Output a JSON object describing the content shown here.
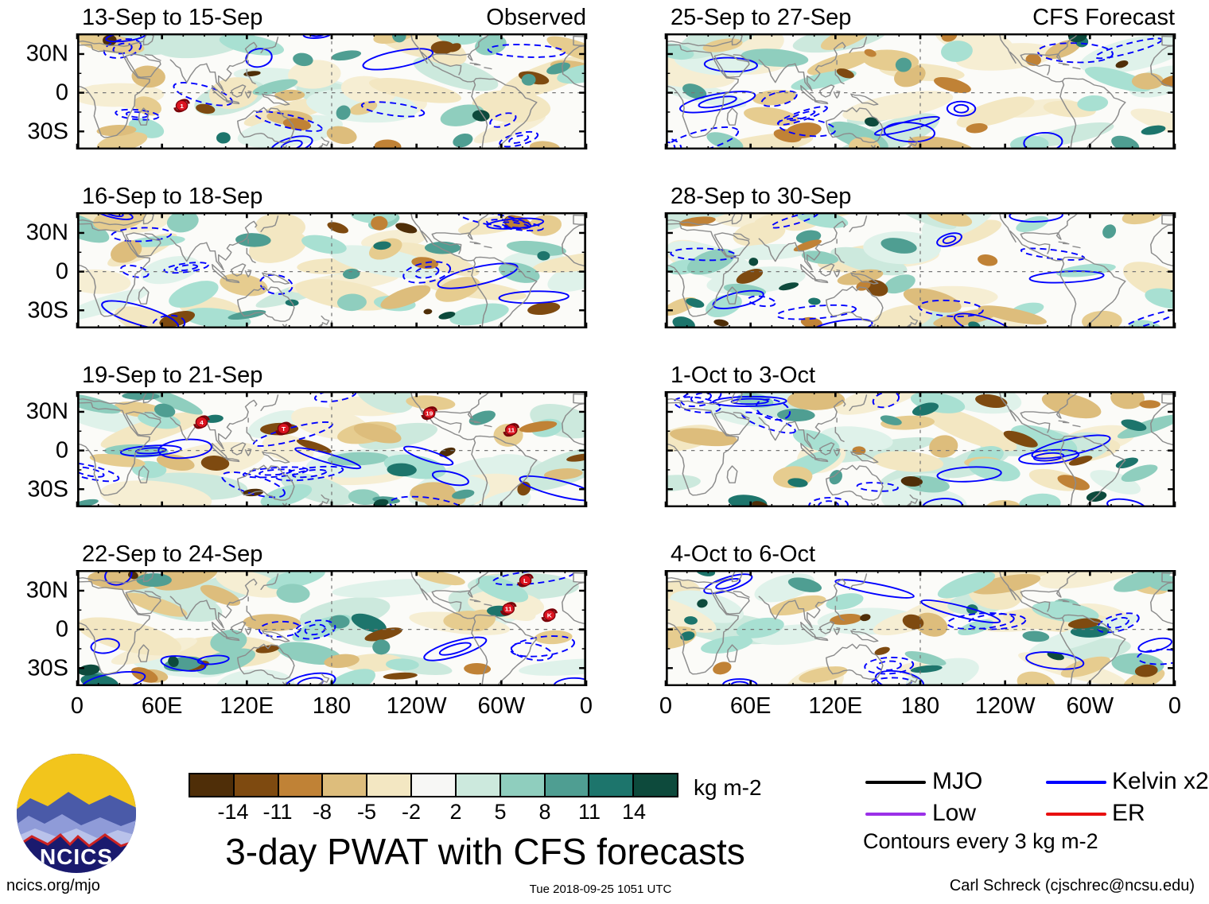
{
  "title": "3-day PWAT with CFS forecasts",
  "branding": {
    "logo_text": "NCICS"
  },
  "footer": {
    "left": "ncics.org/mjo",
    "center": "Tue 2018-09-25 1051 UTC",
    "right": "Carl Schreck (cjschrec@ncsu.edu)"
  },
  "axes": {
    "x_ticks": [
      "0",
      "60E",
      "120E",
      "180",
      "120W",
      "60W",
      "0"
    ],
    "y_ticks": [
      "30N",
      "0",
      "30S"
    ]
  },
  "colorbar": {
    "unit": "kg m-2",
    "tick_labels": [
      "-14",
      "-11",
      "-8",
      "-5",
      "-2",
      "2",
      "5",
      "8",
      "11",
      "14"
    ],
    "colors": [
      "#4F2E08",
      "#7E4A10",
      "#C08236",
      "#DDBD7C",
      "#F3E7C2",
      "#F7F7F5",
      "#CCE9DD",
      "#8FCEBE",
      "#4F9E92",
      "#1D756C",
      "#0D4A3C"
    ]
  },
  "legend": {
    "items": [
      {
        "label": "MJO",
        "color": "#000000"
      },
      {
        "label": "Low",
        "color": "#9B30E8"
      },
      {
        "label": "Kelvin x2",
        "color": "#0000FF"
      },
      {
        "label": "ER",
        "color": "#E81010"
      }
    ],
    "note": "Contours every 3 kg m-2"
  },
  "chart_data": {
    "type": "heatmap",
    "title": "3-day PWAT with CFS forecasts",
    "units": "kg m-2",
    "contour_interval_kg_m2": 3,
    "shading_levels": [
      -14,
      -11,
      -8,
      -5,
      -2,
      2,
      5,
      8,
      11,
      14
    ],
    "lon_range": [
      0,
      360
    ],
    "lat_range": [
      -45,
      45
    ],
    "columns": {
      "left": "Observed",
      "right": "CFS Forecast"
    },
    "contour_types": [
      "MJO",
      "Low",
      "Kelvin x2",
      "ER"
    ],
    "panels": [
      {
        "title": "13-Sep to 15-Sep",
        "annotation": "Observed",
        "column": "left",
        "seed": 11,
        "storms": [
          {
            "label": "1",
            "lon": 74,
            "lat": -10
          }
        ]
      },
      {
        "title": "16-Sep to 18-Sep",
        "annotation": "",
        "column": "left",
        "seed": 22,
        "storms": []
      },
      {
        "title": "19-Sep to 21-Sep",
        "annotation": "",
        "column": "left",
        "seed": 33,
        "storms": [
          {
            "label": "4",
            "lon": 88,
            "lat": 22
          },
          {
            "label": "T",
            "lon": 146,
            "lat": 17
          },
          {
            "label": "19",
            "lon": 249,
            "lat": 29
          },
          {
            "label": "11",
            "lon": 307,
            "lat": 16
          }
        ]
      },
      {
        "title": "22-Sep to 24-Sep",
        "annotation": "",
        "column": "left",
        "seed": 44,
        "storms": [
          {
            "label": "L",
            "lon": 317,
            "lat": 38
          },
          {
            "label": "11",
            "lon": 305,
            "lat": 16
          },
          {
            "label": "K",
            "lon": 334,
            "lat": 11
          }
        ]
      },
      {
        "title": "25-Sep to 27-Sep",
        "annotation": "CFS Forecast",
        "column": "right",
        "seed": 55,
        "storms": []
      },
      {
        "title": "28-Sep to 30-Sep",
        "annotation": "",
        "column": "right",
        "seed": 66,
        "storms": []
      },
      {
        "title": "1-Oct to 3-Oct",
        "annotation": "",
        "column": "right",
        "seed": 77,
        "storms": []
      },
      {
        "title": "4-Oct to 6-Oct",
        "annotation": "",
        "column": "right",
        "seed": 88,
        "storms": []
      }
    ]
  }
}
